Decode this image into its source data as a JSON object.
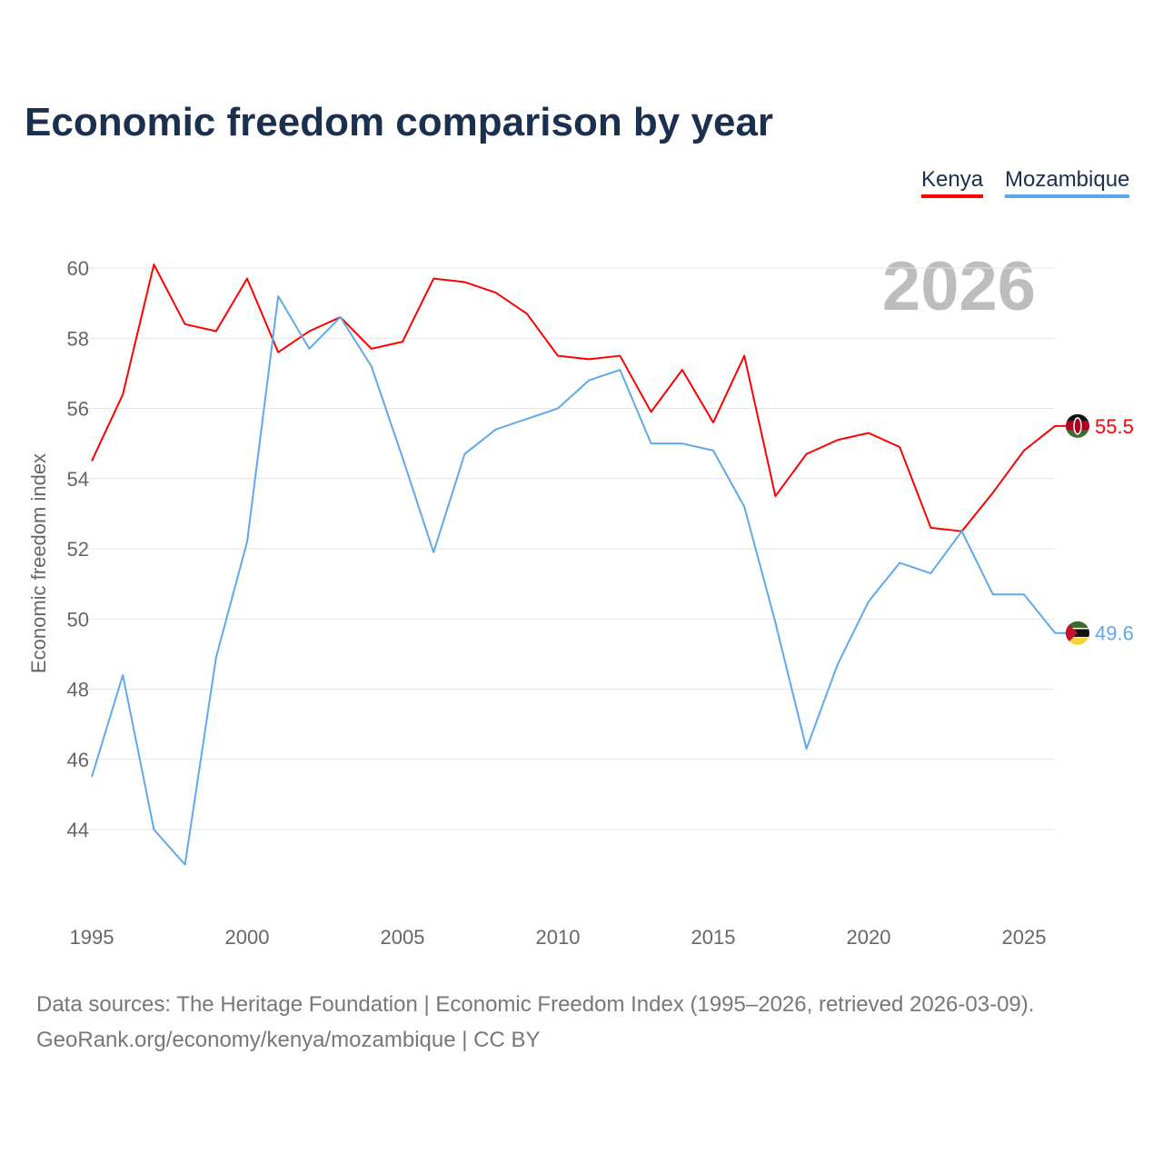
{
  "chart_data": {
    "type": "line",
    "title": "Economic freedom comparison by year",
    "xlabel": "",
    "ylabel": "Economic freedom index",
    "xlim": [
      1995,
      2026
    ],
    "ylim": [
      42,
      61
    ],
    "x_ticks": [
      "1995",
      "2000",
      "2005",
      "2010",
      "2015",
      "2020",
      "2025"
    ],
    "y_ticks": [
      "44",
      "46",
      "48",
      "50",
      "52",
      "54",
      "56",
      "58",
      "60"
    ],
    "grid": true,
    "legend_position": "top-right",
    "year_label": "2026",
    "x": [
      1995,
      1996,
      1997,
      1998,
      1999,
      2000,
      2001,
      2002,
      2003,
      2004,
      2005,
      2006,
      2007,
      2008,
      2009,
      2010,
      2011,
      2012,
      2013,
      2014,
      2015,
      2016,
      2017,
      2018,
      2019,
      2020,
      2021,
      2022,
      2023,
      2024,
      2025,
      2026
    ],
    "series": [
      {
        "name": "Kenya",
        "color": "#ff0000",
        "end_label": "55.5",
        "values": [
          54.5,
          56.4,
          60.1,
          58.4,
          58.2,
          59.7,
          57.6,
          58.2,
          58.6,
          57.7,
          57.9,
          59.7,
          59.6,
          59.3,
          58.7,
          57.5,
          57.4,
          57.5,
          55.9,
          57.1,
          55.6,
          57.5,
          53.5,
          54.7,
          55.1,
          55.3,
          54.9,
          52.6,
          52.5,
          53.6,
          54.8,
          55.5
        ]
      },
      {
        "name": "Mozambique",
        "color": "#5ea9ec",
        "end_label": "49.6",
        "values": [
          45.5,
          48.4,
          44.0,
          43.0,
          48.9,
          52.2,
          59.2,
          57.7,
          58.6,
          57.2,
          54.6,
          51.9,
          54.7,
          55.4,
          55.7,
          56.0,
          56.8,
          57.1,
          55.0,
          55.0,
          54.8,
          53.2,
          49.9,
          46.3,
          48.7,
          50.5,
          51.6,
          51.3,
          52.5,
          50.7,
          50.7,
          49.6
        ]
      }
    ]
  },
  "footer": {
    "line1": "Data sources: The Heritage Foundation | Economic Freedom Index (1995–2026, retrieved 2026-03-09).",
    "line2": "GeoRank.org/economy/kenya/mozambique | CC BY"
  }
}
